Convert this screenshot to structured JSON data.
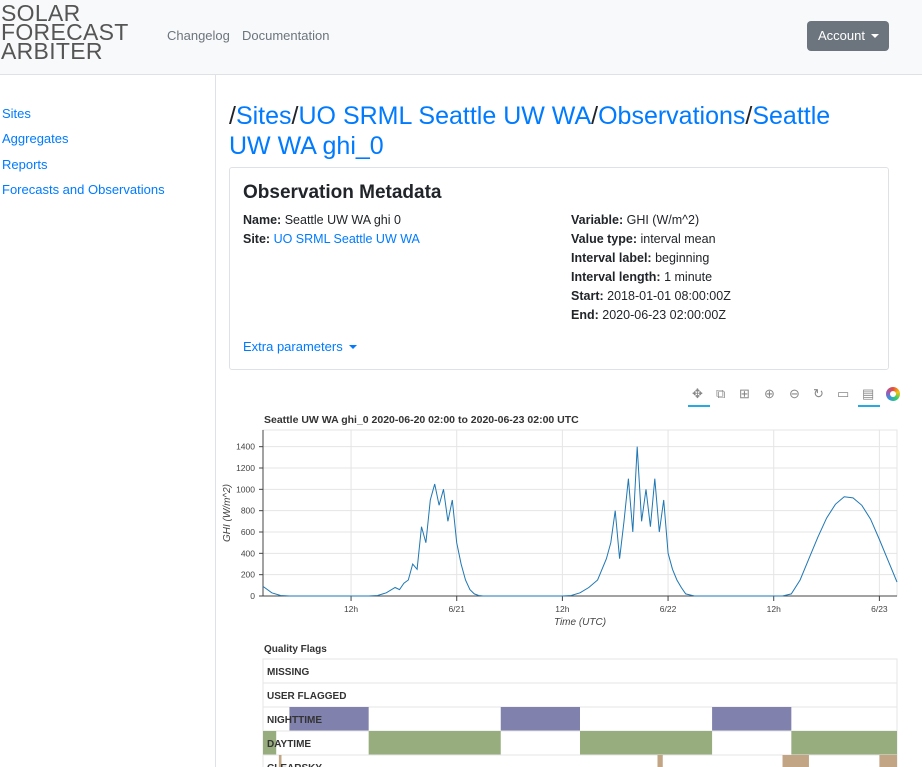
{
  "brand": [
    "SOLAR",
    "FORECAST",
    "ARBITER"
  ],
  "nav": {
    "changelog": "Changelog",
    "documentation": "Documentation",
    "account": "Account"
  },
  "sidebar": [
    "Sites",
    "Aggregates",
    "Reports",
    "Forecasts and Observations"
  ],
  "breadcrumb": {
    "sep": "/",
    "sites": "Sites",
    "site": "UO SRML Seattle UW WA",
    "observations": "Observations",
    "obs": "Seattle UW WA ghi_0"
  },
  "metadata": {
    "title": "Observation Metadata",
    "name_label": "Name:",
    "name": "Seattle UW WA ghi 0",
    "site_label": "Site:",
    "site": "UO SRML Seattle UW WA",
    "variable_label": "Variable:",
    "variable": "GHI (W/m^2)",
    "value_type_label": "Value type:",
    "value_type": "interval mean",
    "interval_label_label": "Interval label:",
    "interval_label": "beginning",
    "interval_length_label": "Interval length:",
    "interval_length": "1 minute",
    "start_label": "Start:",
    "start": "2018-01-01 08:00:00Z",
    "end_label": "End:",
    "end": "2020-06-23 02:00:00Z",
    "extra": "Extra parameters"
  },
  "toolbar": [
    "pan-icon",
    "box-zoom-icon",
    "xbox-zoom-icon",
    "zoom-in-icon",
    "zoom-out-icon",
    "reset-icon",
    "save-icon",
    "hover-icon",
    "bokeh-logo"
  ],
  "chart_data": [
    {
      "type": "line",
      "title": "Seattle UW WA ghi_0 2020-06-20 02:00 to 2020-06-23 02:00 UTC",
      "xlabel": "Time (UTC)",
      "ylabel": "GHI (W/m^2)",
      "ylim": [
        0,
        1500
      ],
      "yticks": [
        0,
        200,
        400,
        600,
        800,
        1000,
        1200,
        1400
      ],
      "xticks": [
        "12h",
        "6/21",
        "12h",
        "6/22",
        "12h",
        "6/23"
      ],
      "grid": true,
      "color": "#1f77b4",
      "series": [
        {
          "x_hours_from_start": [
            0,
            1,
            2,
            3,
            4,
            5,
            6,
            7,
            8,
            9,
            10,
            11,
            12,
            13,
            14,
            15,
            15.5,
            16,
            16.5,
            17,
            17.5,
            18,
            18.5,
            19,
            19.5,
            20,
            20.5,
            21,
            21.5,
            22,
            22.5,
            23,
            23.5,
            24,
            24.5,
            25,
            26,
            27,
            28,
            29,
            30,
            31,
            32,
            33,
            34,
            35,
            36,
            37,
            38,
            39,
            39.5,
            40,
            40.5,
            41,
            41.5,
            42,
            42.5,
            43,
            43.5,
            44,
            44.5,
            45,
            45.5,
            46,
            46.5,
            47,
            47.5,
            48,
            49,
            50,
            51,
            52,
            53,
            54,
            55,
            56,
            57,
            58,
            59,
            60,
            61,
            62,
            63,
            64,
            65,
            66,
            67,
            68,
            69,
            70,
            71,
            72
          ],
          "y": [
            90,
            30,
            5,
            0,
            0,
            0,
            0,
            0,
            0,
            0,
            0,
            0,
            0,
            5,
            30,
            80,
            60,
            120,
            150,
            300,
            250,
            650,
            500,
            900,
            1050,
            850,
            1000,
            700,
            900,
            500,
            300,
            150,
            60,
            20,
            5,
            0,
            0,
            0,
            0,
            0,
            0,
            0,
            0,
            0,
            0,
            5,
            30,
            80,
            150,
            350,
            500,
            800,
            350,
            700,
            1100,
            600,
            1400,
            700,
            1000,
            650,
            1100,
            600,
            900,
            400,
            250,
            150,
            80,
            20,
            0,
            0,
            0,
            0,
            0,
            0,
            0,
            0,
            0,
            0,
            0,
            20,
            150,
            350,
            550,
            730,
            860,
            930,
            920,
            850,
            720,
            530,
            330,
            130
          ]
        }
      ]
    },
    {
      "type": "heatmap",
      "title": "Quality Flags",
      "rows": [
        "MISSING",
        "USER FLAGGED",
        "NIGHTTIME",
        "DAYTIME",
        "CLEARSKY"
      ],
      "colors": {
        "NIGHTTIME": "#8081ad",
        "DAYTIME": "#97ad7e",
        "CLEARSKY": "#c2a584"
      },
      "nighttime_hours": [
        [
          3,
          12
        ],
        [
          27,
          36
        ],
        [
          51,
          60
        ]
      ],
      "daytime_hours": [
        [
          0,
          1.5
        ],
        [
          12,
          27
        ],
        [
          36,
          51
        ],
        [
          60,
          72
        ]
      ],
      "clearsky_hours": [
        [
          1.8,
          2.1
        ],
        [
          44.8,
          45.4
        ],
        [
          59,
          62
        ],
        [
          70,
          72
        ]
      ]
    }
  ]
}
